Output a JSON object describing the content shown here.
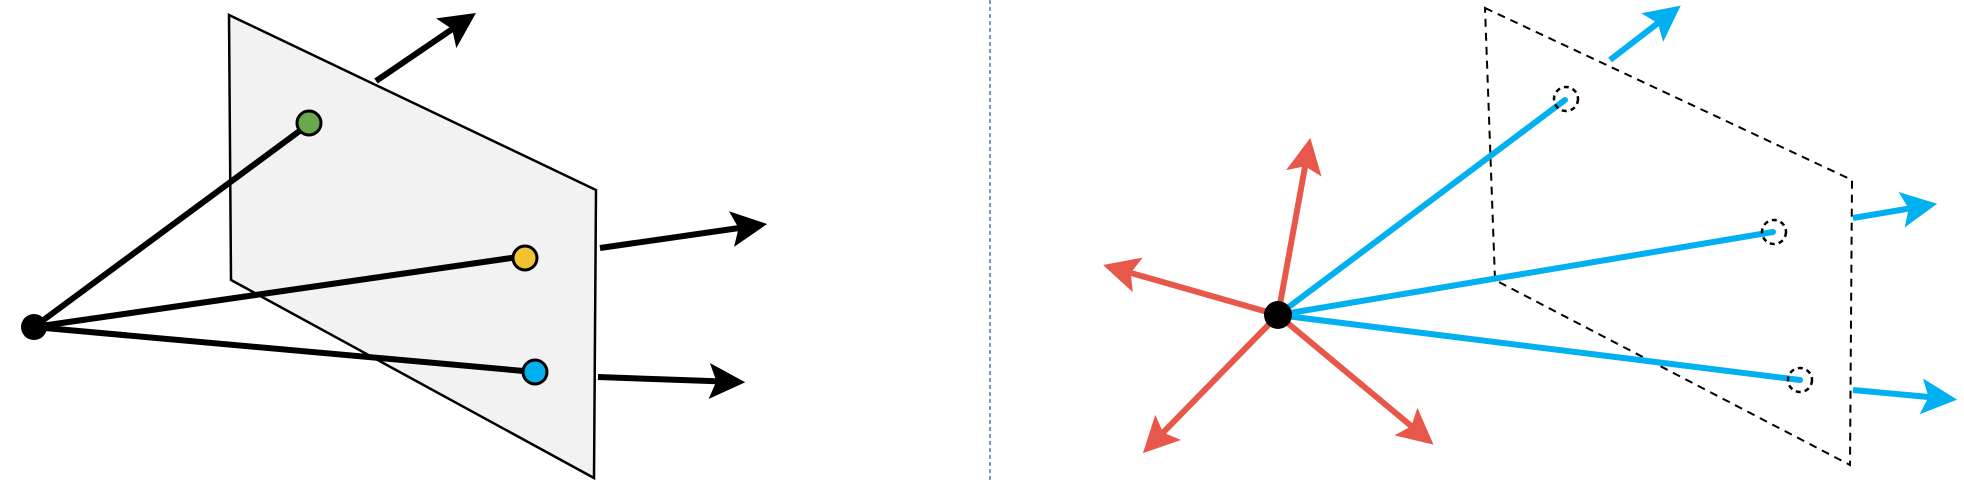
{
  "colors": {
    "background": "#ffffff",
    "ink": "#000000",
    "plane_fill": "#f2f2f2",
    "divider": "#4a7ab0",
    "green_point": "#6aa84f",
    "yellow_point": "#f1c232",
    "cyan_point": "#00b0f0",
    "ray_cyan": "#00b0f0",
    "ray_red": "#e8584a"
  },
  "panels": [
    {
      "name": "left",
      "style": "solid-plane",
      "rays": 3,
      "arrows": 4
    },
    {
      "name": "right",
      "style": "dashed-plane",
      "rays": 3,
      "arrows": 7
    }
  ],
  "icons": {
    "camera_center": "filled-circle",
    "image_point": "ring-circle",
    "missing_point": "dashed-ring"
  }
}
